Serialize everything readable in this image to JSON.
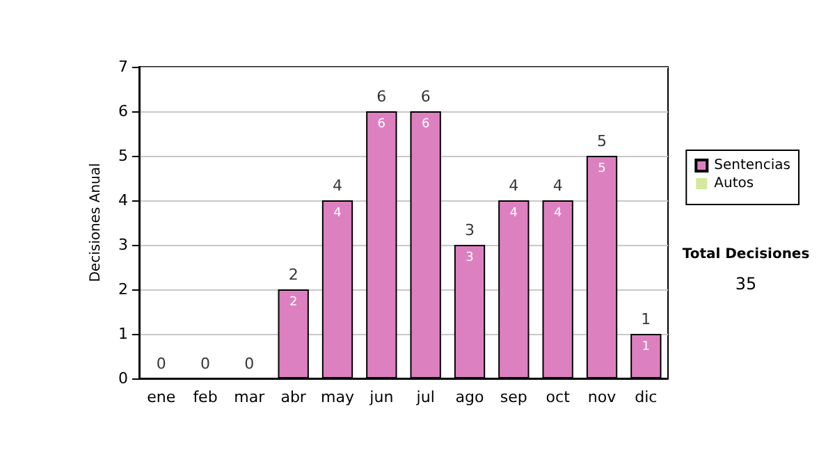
{
  "chart_data": {
    "type": "bar",
    "ylabel": "Decisiones Anual",
    "categories": [
      "ene",
      "feb",
      "mar",
      "abr",
      "may",
      "jun",
      "jul",
      "ago",
      "sep",
      "oct",
      "nov",
      "dic"
    ],
    "series": [
      {
        "name": "Sentencias",
        "color": "#dd80c0",
        "values": [
          0,
          0,
          0,
          2,
          4,
          6,
          6,
          3,
          4,
          4,
          5,
          1
        ],
        "value_labels": [
          null,
          null,
          null,
          "2",
          "4",
          "6",
          "6",
          "3",
          "4",
          "4",
          "5",
          "1"
        ]
      },
      {
        "name": "Autos",
        "color": "#d4e8a0",
        "values": [
          0,
          0,
          0,
          0,
          0,
          0,
          0,
          0,
          0,
          0,
          0,
          0
        ]
      }
    ],
    "stacked": true,
    "totals": [
      "0",
      "0",
      "0",
      "2",
      "4",
      "6",
      "6",
      "3",
      "4",
      "4",
      "5",
      "1"
    ],
    "ylim": [
      0,
      7
    ],
    "yticks": [
      0,
      1,
      2,
      3,
      4,
      5,
      6,
      7
    ],
    "grid": "y",
    "legend": "right",
    "annotations": [
      "Total Decisiones",
      "35"
    ]
  }
}
